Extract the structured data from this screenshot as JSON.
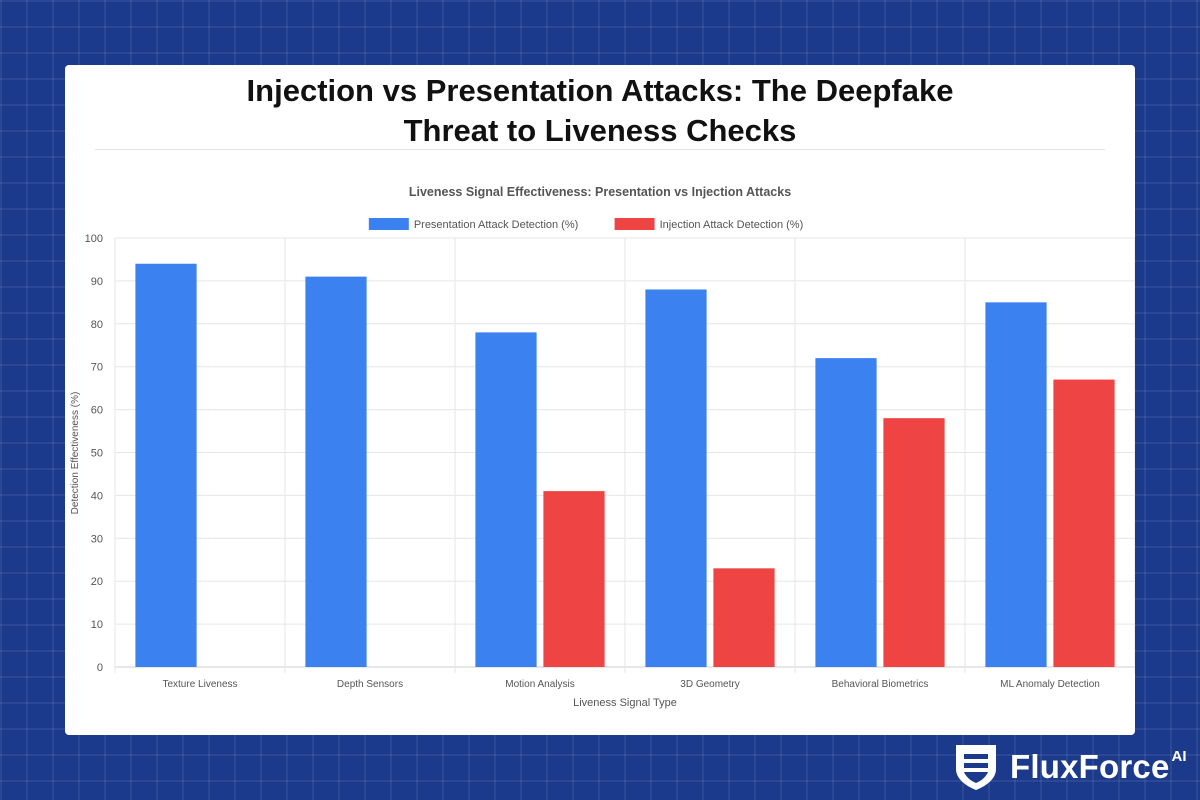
{
  "page": {
    "title_line1": "Injection vs Presentation Attacks: The Deepfake",
    "title_line2": "Threat to Liveness Checks"
  },
  "brand": {
    "name": "FluxForce",
    "suffix": "AI",
    "logo_icon": "shield-icon"
  },
  "colors": {
    "background": "#1c3a8c",
    "presentation": "#3b82f0",
    "injection": "#ef4444"
  },
  "chart_data": {
    "type": "bar",
    "title": "Liveness Signal Effectiveness: Presentation vs Injection Attacks",
    "xlabel": "Liveness Signal Type",
    "ylabel": "Detection Effectiveness (%)",
    "ylim": [
      0,
      100
    ],
    "yticks": [
      0,
      10,
      20,
      30,
      40,
      50,
      60,
      70,
      80,
      90,
      100
    ],
    "grid": true,
    "legend_position": "top",
    "categories": [
      "Texture Liveness",
      "Depth Sensors",
      "Motion Analysis",
      "3D Geometry",
      "Behavioral Biometrics",
      "ML Anomaly Detection"
    ],
    "series": [
      {
        "name": "Presentation Attack Detection (%)",
        "color": "#3b82f0",
        "values": [
          94,
          91,
          78,
          88,
          72,
          85
        ]
      },
      {
        "name": "Injection Attack Detection (%)",
        "color": "#ef4444",
        "values": [
          0,
          0,
          41,
          23,
          58,
          67
        ]
      }
    ]
  }
}
